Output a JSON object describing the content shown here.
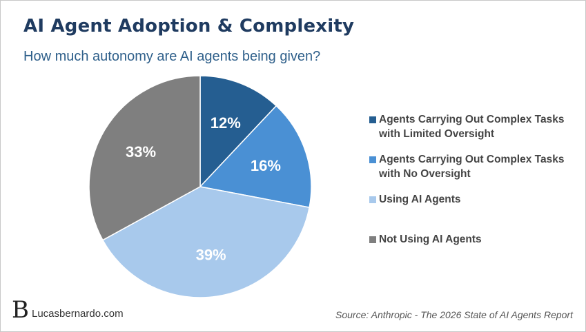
{
  "header": {
    "title": "AI Agent Adoption & Complexity",
    "subtitle": "How much autonomy are AI agents being given?"
  },
  "chart_data": {
    "type": "pie",
    "title": "AI Agent Adoption & Complexity",
    "subtitle": "How much autonomy are AI agents being given?",
    "legend_position": "right",
    "slices": [
      {
        "label": "Agents Carrying Out Complex Tasks with Limited Oversight",
        "value": 12,
        "display": "12%",
        "color": "#255e91"
      },
      {
        "label": "Agents Carrying Out Complex Tasks with No Oversight",
        "value": 16,
        "display": "16%",
        "color": "#4a90d4"
      },
      {
        "label": "Using AI Agents",
        "value": 39,
        "display": "39%",
        "color": "#a8c9ec"
      },
      {
        "label": "Not Using AI Agents",
        "value": 33,
        "display": "33%",
        "color": "#7f7f7f"
      }
    ]
  },
  "legend": {
    "items": [
      "Agents Carrying Out Complex Tasks\nwith Limited Oversight",
      "Agents Carrying Out Complex Tasks\nwith No Oversight",
      "Using AI Agents",
      "Not Using AI Agents"
    ]
  },
  "footer": {
    "brand_mark": "B",
    "brand": "Lucasbernardo.com",
    "source": "Source: Anthropic - The 2026 State of AI Agents Report"
  }
}
